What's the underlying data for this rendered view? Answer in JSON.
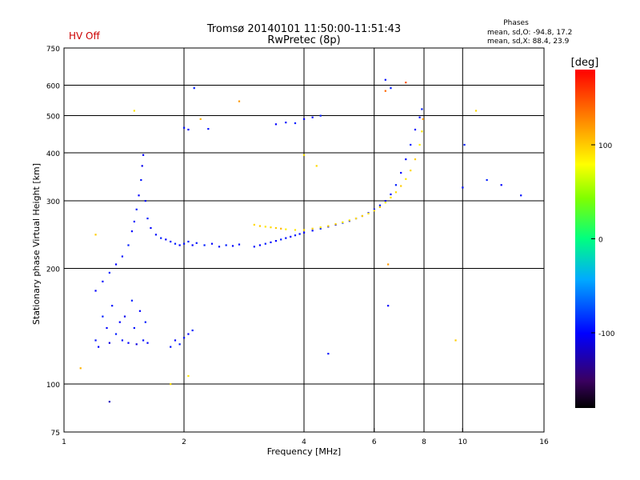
{
  "header": {
    "status_label": "HV Off",
    "status_color": "#cc0000",
    "title_line1": "Tromsø 20140101 11:50:00-11:51:43",
    "title_line2": "RwPretec (8p)",
    "stats_title": "Phases",
    "stats_o": "mean, sd,O: -94.8, 17.2",
    "stats_x": "mean, sd,X:  88.4, 23.9"
  },
  "colorbar": {
    "unit": "[deg]",
    "ticks": [
      {
        "label": "100",
        "value": 100
      },
      {
        "label": "0",
        "value": 0
      },
      {
        "label": "-100",
        "value": -100
      }
    ],
    "range": [
      -180,
      180
    ]
  },
  "chart_data": {
    "type": "scatter",
    "xlabel": "Frequency [MHz]",
    "ylabel": "Stationary phase Virtual Height [km]",
    "xscale": "log",
    "yscale": "log",
    "xlim": [
      1,
      16
    ],
    "ylim": [
      75,
      750
    ],
    "xticks": [
      {
        "v": 1,
        "l": "1"
      },
      {
        "v": 2,
        "l": "2"
      },
      {
        "v": 4,
        "l": "4"
      },
      {
        "v": 6,
        "l": "6"
      },
      {
        "v": 8,
        "l": "8"
      },
      {
        "v": 10,
        "l": "10"
      },
      {
        "v": 16,
        "l": "16"
      }
    ],
    "yticks": [
      {
        "v": 75,
        "l": "75"
      },
      {
        "v": 100,
        "l": "100"
      },
      {
        "v": 200,
        "l": "200"
      },
      {
        "v": 300,
        "l": "300"
      },
      {
        "v": 400,
        "l": "400"
      },
      {
        "v": 500,
        "l": "500"
      },
      {
        "v": 600,
        "l": "600"
      },
      {
        "v": 750,
        "l": "750"
      }
    ],
    "grid_x": [
      2,
      4,
      6,
      8,
      10
    ],
    "grid_y": [
      100,
      200,
      300,
      400,
      500,
      600
    ],
    "series": [
      {
        "mode": "O",
        "points": [
          [
            1.2,
            130,
            -95
          ],
          [
            1.22,
            125,
            -100
          ],
          [
            1.25,
            150,
            -90
          ],
          [
            1.28,
            140,
            -100
          ],
          [
            1.3,
            128,
            -110
          ],
          [
            1.32,
            160,
            -95
          ],
          [
            1.35,
            135,
            -90
          ],
          [
            1.38,
            145,
            -100
          ],
          [
            1.4,
            130,
            -95
          ],
          [
            1.42,
            150,
            -105
          ],
          [
            1.45,
            128,
            -100
          ],
          [
            1.48,
            165,
            -90
          ],
          [
            1.5,
            140,
            -95
          ],
          [
            1.52,
            127,
            -110
          ],
          [
            1.55,
            155,
            -100
          ],
          [
            1.58,
            130,
            -95
          ],
          [
            1.6,
            145,
            -90
          ],
          [
            1.62,
            128,
            -100
          ],
          [
            1.2,
            175,
            -100
          ],
          [
            1.25,
            185,
            -95
          ],
          [
            1.3,
            195,
            -90
          ],
          [
            1.35,
            205,
            -100
          ],
          [
            1.4,
            215,
            -95
          ],
          [
            1.45,
            230,
            -90
          ],
          [
            1.48,
            250,
            -100
          ],
          [
            1.5,
            265,
            -95
          ],
          [
            1.52,
            285,
            -90
          ],
          [
            1.54,
            310,
            -100
          ],
          [
            1.56,
            340,
            -95
          ],
          [
            1.57,
            370,
            -105
          ],
          [
            1.58,
            395,
            -100
          ],
          [
            1.6,
            300,
            -95
          ],
          [
            1.62,
            270,
            -90
          ],
          [
            1.65,
            255,
            -100
          ],
          [
            1.7,
            245,
            -95
          ],
          [
            1.75,
            240,
            -90
          ],
          [
            1.8,
            238,
            -100
          ],
          [
            1.85,
            235,
            -95
          ],
          [
            1.9,
            232,
            -90
          ],
          [
            1.95,
            230,
            -100
          ],
          [
            2.0,
            232,
            -95
          ],
          [
            2.05,
            235,
            -90
          ],
          [
            2.1,
            230,
            -100
          ],
          [
            2.15,
            233,
            -95
          ],
          [
            2.25,
            230,
            -90
          ],
          [
            2.35,
            232,
            -100
          ],
          [
            2.45,
            228,
            -95
          ],
          [
            2.55,
            230,
            -90
          ],
          [
            2.65,
            229,
            -100
          ],
          [
            2.75,
            231,
            -95
          ],
          [
            1.85,
            125,
            -95
          ],
          [
            1.9,
            130,
            -100
          ],
          [
            1.95,
            127,
            -90
          ],
          [
            2.0,
            132,
            -95
          ],
          [
            2.05,
            135,
            -100
          ],
          [
            2.1,
            138,
            -90
          ],
          [
            2.0,
            465,
            -95
          ],
          [
            2.05,
            460,
            -100
          ],
          [
            2.12,
            590,
            -90
          ],
          [
            2.3,
            462,
            -95
          ],
          [
            3.0,
            228,
            -95
          ],
          [
            3.1,
            230,
            -100
          ],
          [
            3.2,
            232,
            -90
          ],
          [
            3.3,
            234,
            -95
          ],
          [
            3.4,
            236,
            -100
          ],
          [
            3.5,
            238,
            -90
          ],
          [
            3.6,
            240,
            -95
          ],
          [
            3.7,
            242,
            -100
          ],
          [
            3.8,
            244,
            -90
          ],
          [
            3.9,
            246,
            -95
          ],
          [
            4.0,
            248,
            -100
          ],
          [
            4.2,
            251,
            -95
          ],
          [
            4.4,
            254,
            -90
          ],
          [
            4.6,
            257,
            -100
          ],
          [
            4.8,
            260,
            -95
          ],
          [
            5.0,
            263,
            -90
          ],
          [
            5.2,
            266,
            -100
          ],
          [
            5.4,
            270,
            -95
          ],
          [
            5.6,
            274,
            -90
          ],
          [
            5.8,
            279,
            -100
          ],
          [
            6.0,
            285,
            -95
          ],
          [
            6.2,
            292,
            -90
          ],
          [
            6.4,
            300,
            -100
          ],
          [
            6.6,
            312,
            -95
          ],
          [
            6.8,
            330,
            -90
          ],
          [
            7.0,
            355,
            -100
          ],
          [
            7.2,
            385,
            -95
          ],
          [
            7.4,
            420,
            -90
          ],
          [
            7.6,
            460,
            -100
          ],
          [
            7.8,
            495,
            -95
          ],
          [
            7.9,
            520,
            -90
          ],
          [
            3.4,
            475,
            -100
          ],
          [
            3.6,
            480,
            -95
          ],
          [
            3.8,
            478,
            -90
          ],
          [
            4.0,
            490,
            -100
          ],
          [
            4.2,
            495,
            -95
          ],
          [
            4.4,
            500,
            -90
          ],
          [
            1.3,
            90,
            -120
          ],
          [
            4.6,
            120,
            -95
          ],
          [
            6.5,
            160,
            -100
          ],
          [
            6.4,
            620,
            -95
          ],
          [
            6.6,
            590,
            -90
          ],
          [
            10.0,
            325,
            -95
          ],
          [
            11.5,
            340,
            -90
          ],
          [
            12.5,
            330,
            -100
          ],
          [
            14.0,
            310,
            -95
          ],
          [
            10.1,
            420,
            -90
          ]
        ]
      },
      {
        "mode": "X",
        "points": [
          [
            3.0,
            260,
            95
          ],
          [
            3.1,
            258,
            100
          ],
          [
            3.2,
            257,
            90
          ],
          [
            3.3,
            256,
            95
          ],
          [
            3.4,
            255,
            100
          ],
          [
            3.5,
            254,
            110
          ],
          [
            3.6,
            253,
            85
          ],
          [
            3.8,
            252,
            90
          ],
          [
            4.0,
            252,
            95
          ],
          [
            4.2,
            254,
            100
          ],
          [
            4.4,
            256,
            90
          ],
          [
            4.6,
            258,
            95
          ],
          [
            4.8,
            261,
            100
          ],
          [
            5.0,
            264,
            85
          ],
          [
            5.2,
            267,
            90
          ],
          [
            5.4,
            270,
            95
          ],
          [
            5.6,
            274,
            100
          ],
          [
            5.8,
            278,
            90
          ],
          [
            6.0,
            283,
            95
          ],
          [
            6.2,
            289,
            100
          ],
          [
            6.4,
            297,
            85
          ],
          [
            6.6,
            306,
            90
          ],
          [
            6.8,
            316,
            95
          ],
          [
            7.0,
            328,
            100
          ],
          [
            7.2,
            342,
            90
          ],
          [
            7.4,
            360,
            95
          ],
          [
            7.6,
            385,
            100
          ],
          [
            7.8,
            420,
            85
          ],
          [
            7.9,
            455,
            90
          ],
          [
            7.95,
            490,
            120
          ],
          [
            1.5,
            515,
            90
          ],
          [
            1.2,
            245,
            100
          ],
          [
            1.1,
            110,
            110
          ],
          [
            2.05,
            105,
            90
          ],
          [
            1.85,
            100,
            95
          ],
          [
            2.2,
            490,
            110
          ],
          [
            2.75,
            545,
            120
          ],
          [
            4.3,
            370,
            95
          ],
          [
            4.0,
            395,
            90
          ],
          [
            9.6,
            130,
            100
          ],
          [
            10.8,
            515,
            95
          ],
          [
            6.5,
            205,
            120
          ],
          [
            6.4,
            580,
            140
          ],
          [
            7.2,
            610,
            150
          ]
        ]
      }
    ]
  }
}
